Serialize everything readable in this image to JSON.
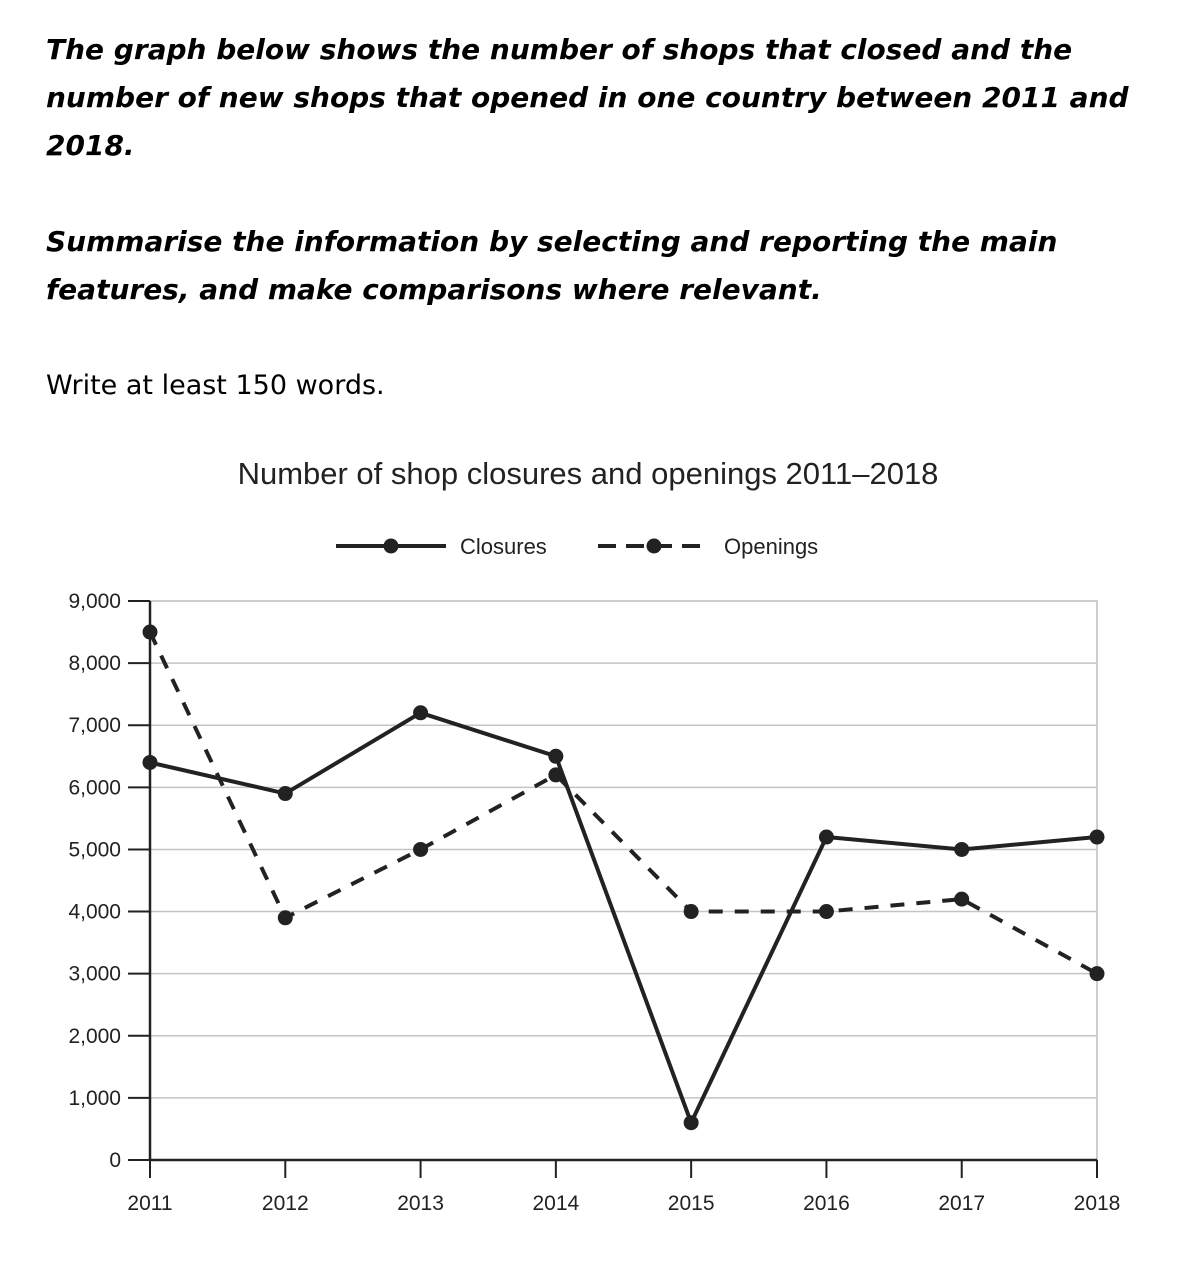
{
  "prompt": {
    "intro": "The graph below shows the number of shops that closed and the number of new shops that opened in one country between 2011 and 2018.",
    "task": "Summarise the information by selecting and reporting the main features, and make comparisons where relevant.",
    "instruction": "Write at least 150 words."
  },
  "chart_data": {
    "type": "line",
    "title": "Number of shop closures and openings 2011–2018",
    "xlabel": "",
    "ylabel": "",
    "x": [
      "2011",
      "2012",
      "2013",
      "2014",
      "2015",
      "2016",
      "2017",
      "2018"
    ],
    "ylim": [
      0,
      9000
    ],
    "yticks": [
      0,
      1000,
      2000,
      3000,
      4000,
      5000,
      6000,
      7000,
      8000,
      9000
    ],
    "ytick_labels": [
      "0",
      "1,000",
      "2,000",
      "3,000",
      "4,000",
      "5,000",
      "6,000",
      "7,000",
      "8,000",
      "9,000"
    ],
    "grid": true,
    "legend_position": "top-center",
    "series": [
      {
        "name": "Closures",
        "style": "solid",
        "color": "#222222",
        "values": [
          6400,
          5900,
          7200,
          6500,
          600,
          5200,
          5000,
          5200
        ]
      },
      {
        "name": "Openings",
        "style": "dashed",
        "color": "#222222",
        "values": [
          8500,
          3900,
          5000,
          6200,
          4000,
          4000,
          4200,
          3000
        ]
      }
    ]
  }
}
